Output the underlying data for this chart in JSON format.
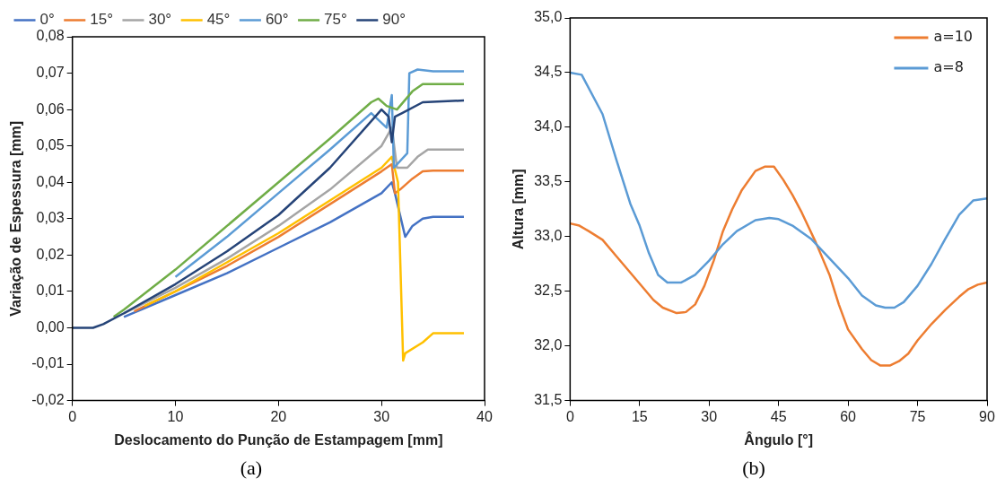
{
  "chart_data": [
    {
      "type": "line",
      "xlabel": "Deslocamento do Punção de Estampagem [mm]",
      "ylabel": "Variação de Espessura [mm]",
      "annotations": [
        "(a)"
      ],
      "xlim": [
        0,
        40
      ],
      "xticks": [
        0,
        10,
        20,
        30,
        40
      ],
      "ylim": [
        -0.02,
        0.08
      ],
      "yticks": [
        {
          "value": -0.02,
          "label": "-0,02"
        },
        {
          "value": -0.01,
          "label": "-0,01"
        },
        {
          "value": 0,
          "label": "0,00"
        },
        {
          "value": 0.01,
          "label": "0,01"
        },
        {
          "value": 0.02,
          "label": "0,02"
        },
        {
          "value": 0.03,
          "label": "0,03"
        },
        {
          "value": 0.04,
          "label": "0,04"
        },
        {
          "value": 0.05,
          "label": "0,05"
        },
        {
          "value": 0.06,
          "label": "0,06"
        },
        {
          "value": 0.07,
          "label": "0,07"
        },
        {
          "value": 0.08,
          "label": "0,08"
        }
      ],
      "grid": false,
      "legend": "top",
      "marker": "none",
      "line_style": "solid",
      "series": [
        {
          "name": "0°",
          "color": "#4472c4",
          "x": [
            5,
            10,
            15,
            20,
            25,
            30,
            31,
            31.3,
            32.3,
            33,
            34,
            35,
            38
          ],
          "values": [
            0.003,
            0.009,
            0.015,
            0.022,
            0.029,
            0.037,
            0.04,
            0.037,
            0.025,
            0.028,
            0.03,
            0.0305,
            0.0305
          ]
        },
        {
          "name": "15°",
          "color": "#ed7d31",
          "x": [
            6,
            10,
            15,
            20,
            25,
            30,
            31,
            31.3,
            31.8,
            33,
            34,
            35,
            38
          ],
          "values": [
            0.0045,
            0.01,
            0.017,
            0.025,
            0.034,
            0.043,
            0.045,
            0.037,
            0.038,
            0.041,
            0.043,
            0.0432,
            0.0432
          ]
        },
        {
          "name": "30°",
          "color": "#a5a5a5",
          "x": [
            5,
            10,
            15,
            20,
            25,
            30,
            31,
            31.5,
            32.5,
            33.5,
            34.5,
            35,
            38
          ],
          "values": [
            0.004,
            0.011,
            0.019,
            0.028,
            0.038,
            0.05,
            0.055,
            0.044,
            0.044,
            0.047,
            0.049,
            0.049,
            0.049
          ]
        },
        {
          "name": "45°",
          "color": "#ffc000",
          "x": [
            7,
            10,
            15,
            20,
            25,
            30,
            31,
            31.6,
            32.1,
            32.3,
            34,
            35,
            38
          ],
          "values": [
            0.006,
            0.01,
            0.018,
            0.026,
            0.035,
            0.044,
            0.047,
            0.04,
            -0.009,
            -0.007,
            -0.004,
            -0.0015,
            -0.0015
          ]
        },
        {
          "name": "60°",
          "color": "#5b9bd5",
          "x": [
            10,
            15,
            20,
            25,
            29,
            30.5,
            31,
            31.2,
            32.5,
            32.7,
            33.5,
            35,
            38
          ],
          "values": [
            0.014,
            0.025,
            0.037,
            0.049,
            0.059,
            0.055,
            0.064,
            0.044,
            0.048,
            0.07,
            0.071,
            0.0705,
            0.0705
          ]
        },
        {
          "name": "75°",
          "color": "#70ad47",
          "x": [
            4,
            5,
            10,
            15,
            20,
            25,
            29,
            29.7,
            30.5,
            31.5,
            33,
            34,
            38
          ],
          "values": [
            0.003,
            0.005,
            0.016,
            0.028,
            0.04,
            0.052,
            0.062,
            0.063,
            0.061,
            0.06,
            0.065,
            0.067,
            0.067
          ]
        },
        {
          "name": "90°",
          "color": "#264478",
          "x": [
            0,
            2,
            3,
            5,
            10,
            15,
            20,
            25,
            30,
            30.7,
            31,
            31.3,
            32,
            34,
            38
          ],
          "values": [
            0,
            0,
            0.001,
            0.004,
            0.012,
            0.021,
            0.031,
            0.044,
            0.06,
            0.058,
            0.051,
            0.058,
            0.059,
            0.062,
            0.0625
          ]
        }
      ]
    },
    {
      "type": "line",
      "xlabel": "Ângulo [°]",
      "ylabel": "Altura [mm]",
      "annotations": [
        "(b)"
      ],
      "xlim": [
        0,
        90
      ],
      "xticks": [
        0,
        15,
        30,
        45,
        60,
        75,
        90
      ],
      "ylim": [
        31.5,
        35
      ],
      "yticks": [
        {
          "value": 31.5,
          "label": "31,5"
        },
        {
          "value": 32,
          "label": "32,0"
        },
        {
          "value": 32.5,
          "label": "32,5"
        },
        {
          "value": 33,
          "label": "33,0"
        },
        {
          "value": 33.5,
          "label": "33,5"
        },
        {
          "value": 34,
          "label": "34,0"
        },
        {
          "value": 34.5,
          "label": "34,5"
        },
        {
          "value": 35,
          "label": "35,0"
        }
      ],
      "grid": false,
      "legend": "top right",
      "marker": "none",
      "line_style": "solid",
      "series": [
        {
          "name": "a=10",
          "color": "#ed7d31",
          "x": [
            0,
            2,
            4,
            7,
            10,
            13,
            16,
            18,
            20,
            23,
            25,
            27,
            29,
            31,
            33,
            35,
            37,
            40,
            42,
            44,
            46,
            48,
            50,
            53,
            56,
            58,
            60,
            63,
            65,
            67,
            69,
            71,
            73,
            75,
            78,
            81,
            84,
            86,
            88,
            90
          ],
          "values": [
            33.12,
            33.1,
            33.05,
            32.97,
            32.82,
            32.67,
            32.52,
            32.42,
            32.35,
            32.3,
            32.31,
            32.38,
            32.55,
            32.78,
            33.05,
            33.25,
            33.42,
            33.6,
            33.64,
            33.64,
            33.52,
            33.38,
            33.22,
            32.95,
            32.65,
            32.38,
            32.15,
            31.97,
            31.87,
            31.82,
            31.82,
            31.86,
            31.93,
            32.05,
            32.2,
            32.33,
            32.45,
            32.52,
            32.56,
            32.58
          ]
        },
        {
          "name": "a=8",
          "color": "#5b9bd5",
          "x": [
            0,
            2.5,
            7,
            10,
            13,
            15,
            17,
            19,
            21,
            24,
            27,
            30,
            33,
            36,
            40,
            43,
            45,
            48,
            52,
            56,
            60,
            63,
            66,
            68,
            70,
            72,
            75,
            78,
            81,
            84,
            87,
            90
          ],
          "values": [
            34.5,
            34.48,
            34.12,
            33.7,
            33.3,
            33.1,
            32.85,
            32.65,
            32.58,
            32.58,
            32.65,
            32.78,
            32.93,
            33.05,
            33.15,
            33.17,
            33.16,
            33.1,
            32.98,
            32.8,
            32.62,
            32.46,
            32.37,
            32.35,
            32.35,
            32.4,
            32.55,
            32.75,
            32.98,
            33.2,
            33.33,
            33.35
          ]
        }
      ]
    }
  ]
}
